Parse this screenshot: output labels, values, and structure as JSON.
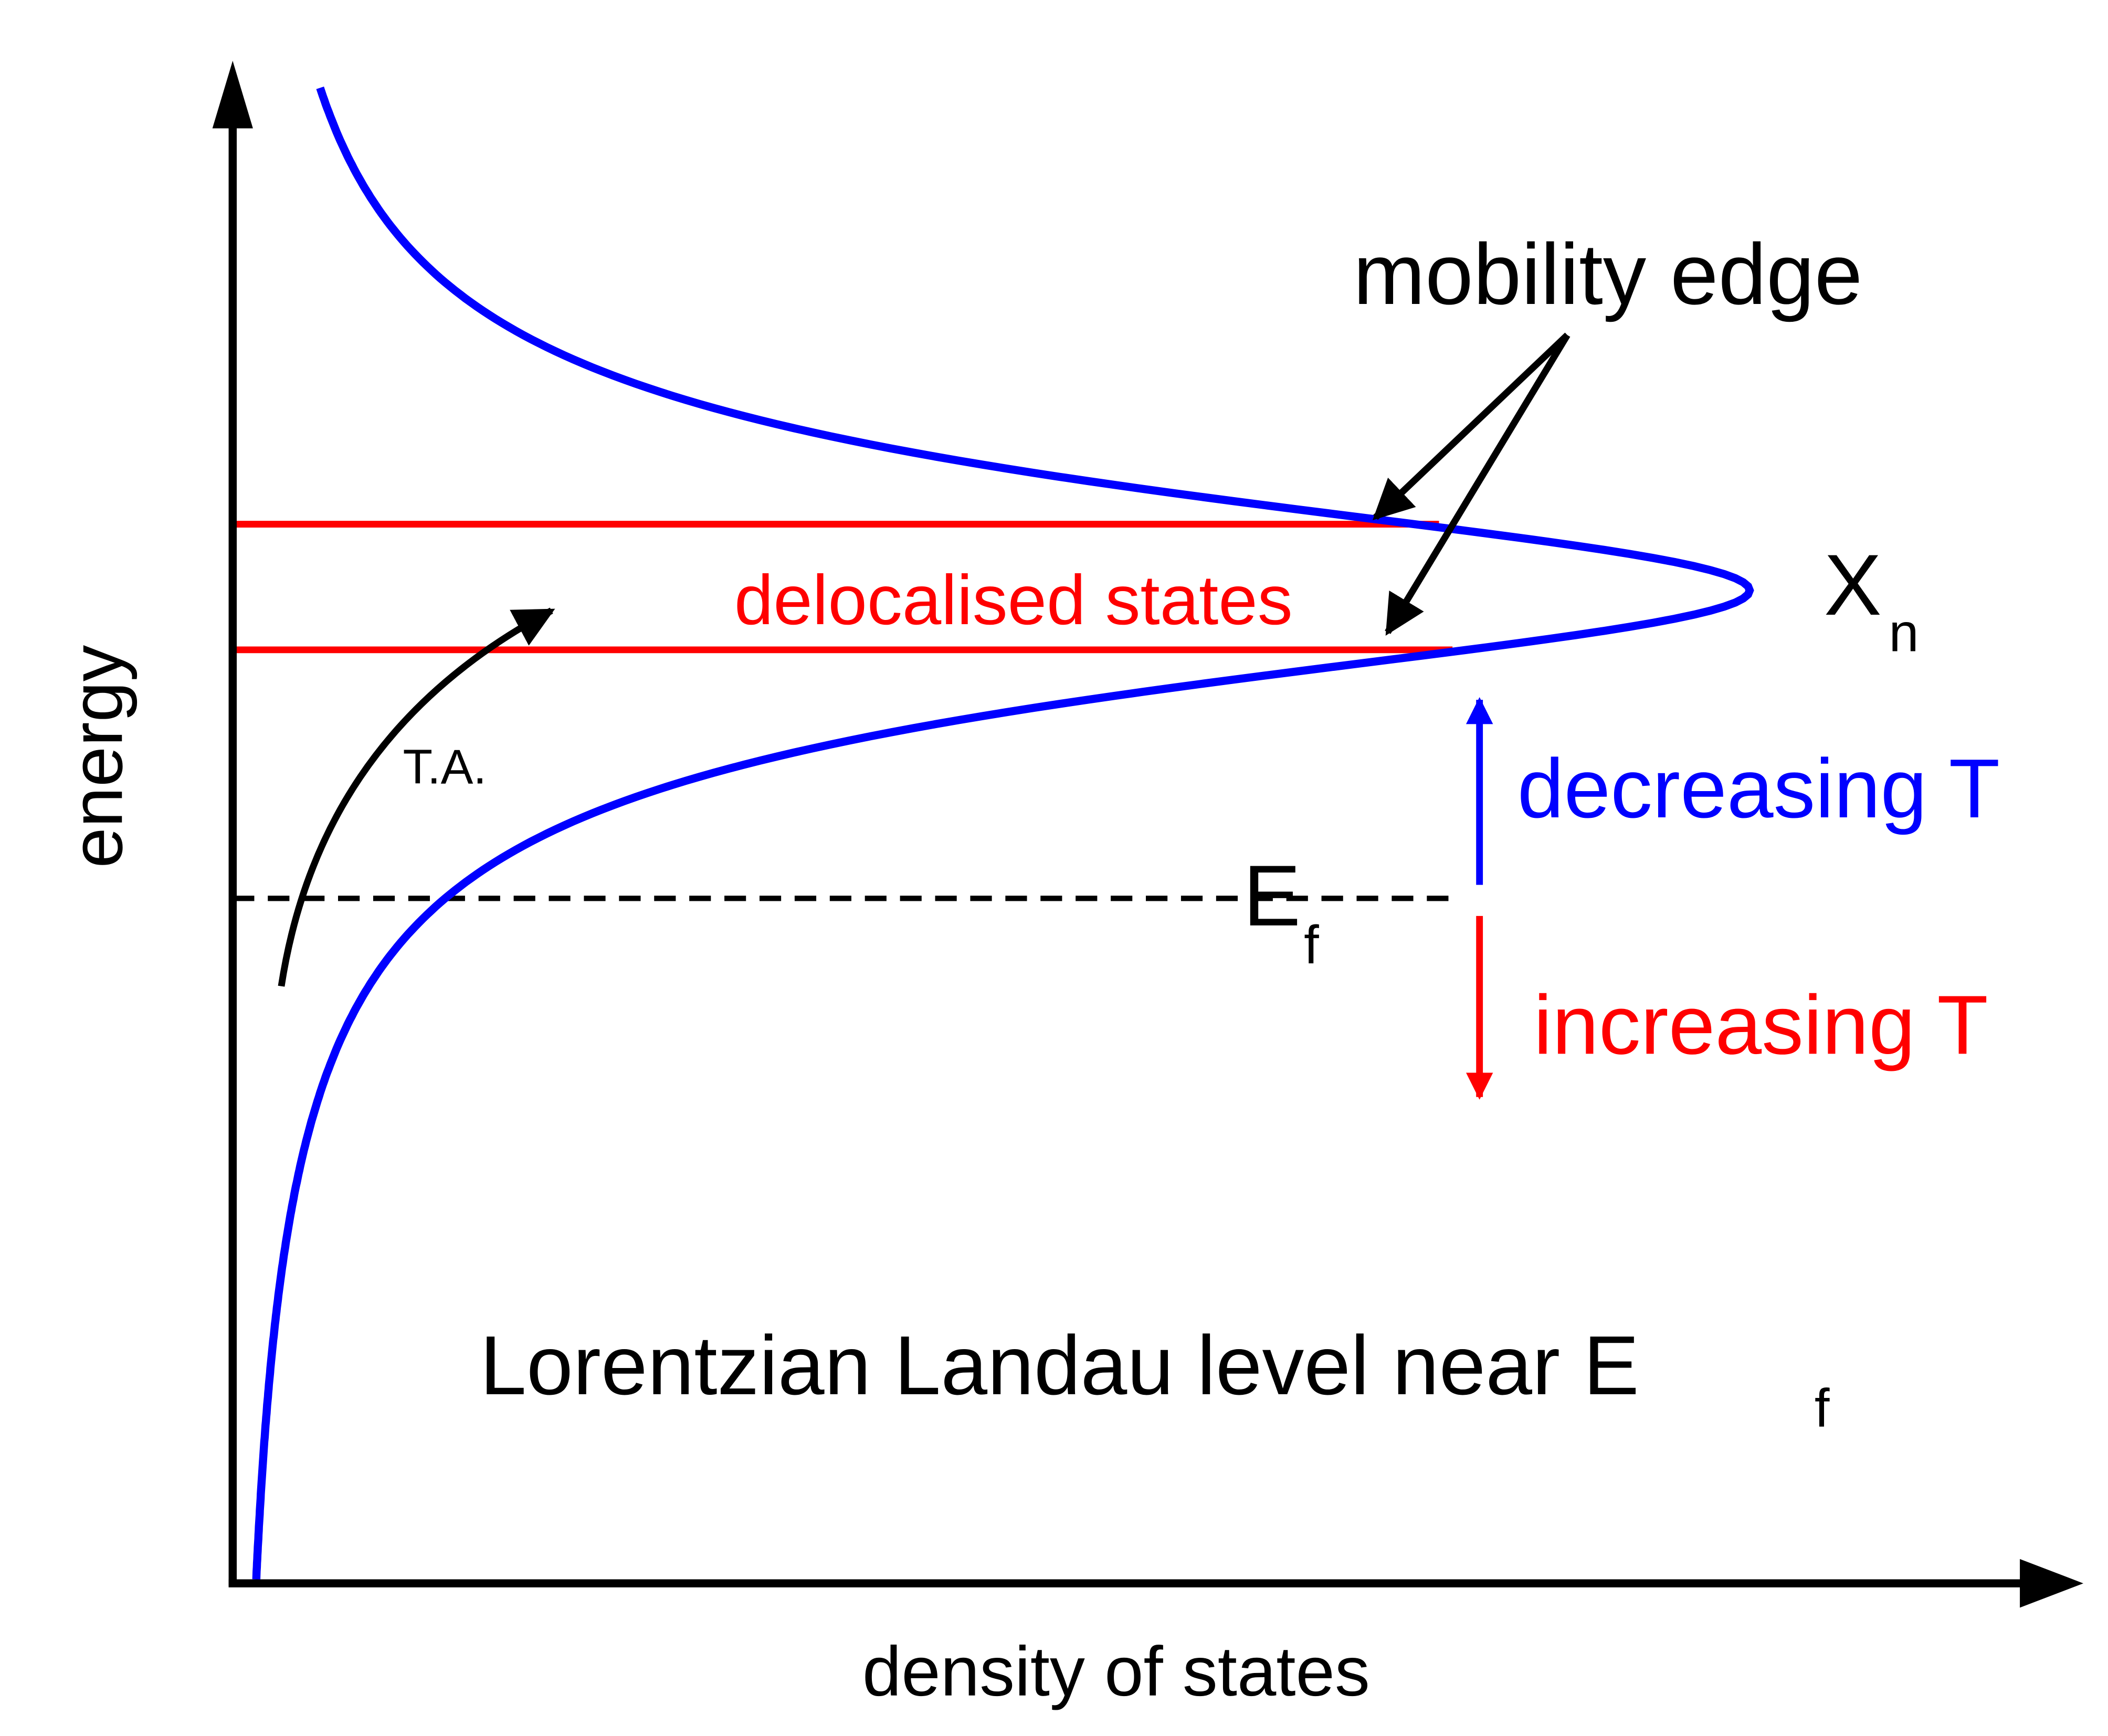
{
  "axes": {
    "x_label": "density of states",
    "y_label": "energy"
  },
  "annotations": {
    "mobility_edge": "mobility edge",
    "delocalised_states": "delocalised states",
    "level": "X",
    "level_sub": "n",
    "fermi": "E",
    "fermi_sub": "f",
    "decreasing": "decreasing T",
    "increasing": "increasing T",
    "thermal_activation": "T.A.",
    "caption": "Lorentzian Landau level near E",
    "caption_sub": "f"
  }
}
